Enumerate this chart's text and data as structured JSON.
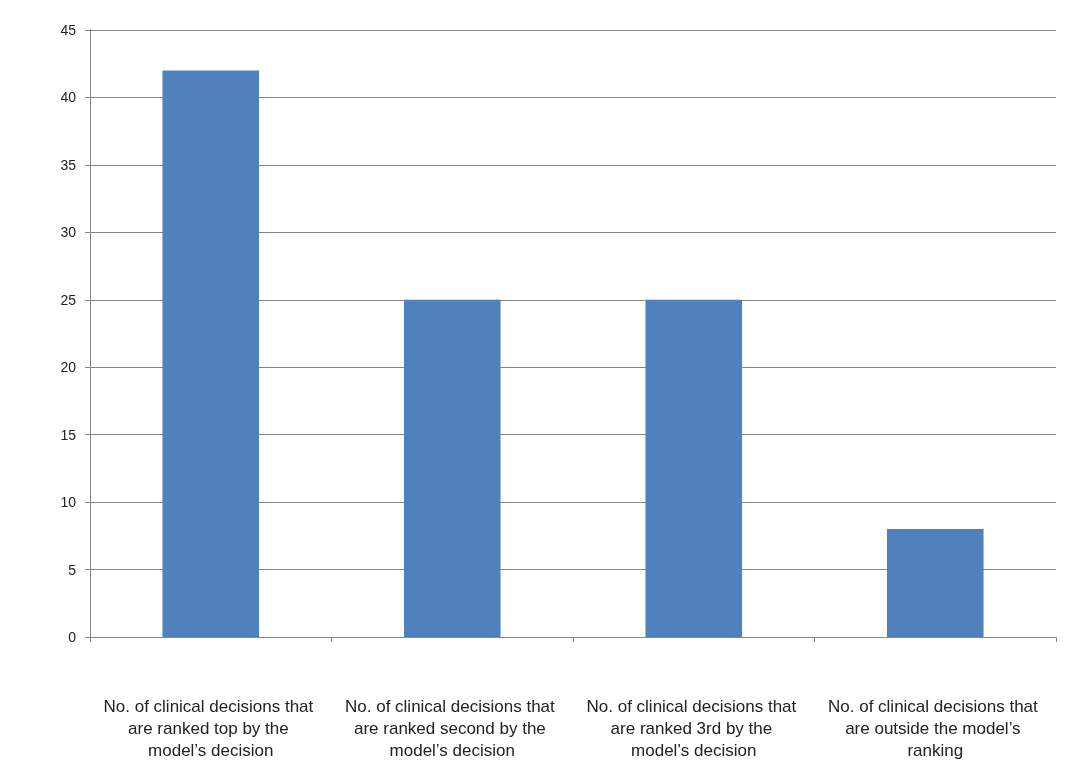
{
  "chart_data": {
    "type": "bar",
    "categories": [
      "No. of clinical decisions that are ranked top by the model’s decision",
      "No. of clinical decisions that are ranked second by the model’s decision",
      "No. of clinical decisions that are ranked 3rd by the model’s decision",
      "No. of clinical decisions that are outside the model’s ranking"
    ],
    "values": [
      42,
      25,
      25,
      8
    ],
    "color": "#4f81bd",
    "ylim": [
      0,
      45
    ],
    "yticks": [
      0,
      5,
      10,
      15,
      20,
      25,
      30,
      35,
      40,
      45
    ],
    "grid": "y"
  }
}
